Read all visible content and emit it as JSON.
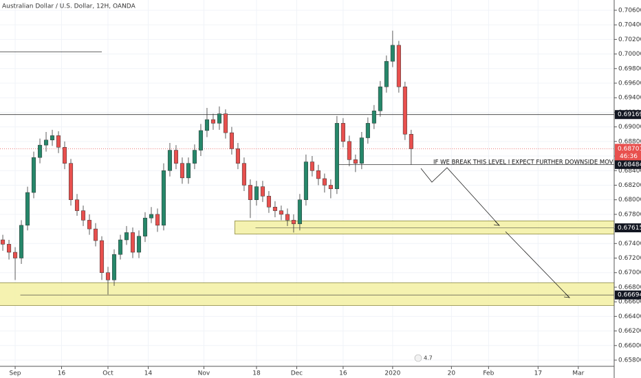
{
  "chart_data": {
    "type": "candlestick",
    "title": "Australian Dollar / U.S. Dollar, 12H, OANDA",
    "x": [
      -4,
      -2,
      0,
      2,
      4,
      6,
      8,
      10,
      12,
      14,
      16,
      18,
      20,
      22,
      24,
      26,
      28,
      30,
      32,
      34,
      36,
      38,
      40,
      42,
      44,
      46,
      48,
      50,
      52,
      54,
      56,
      58,
      60,
      62,
      64,
      66,
      68,
      70,
      72,
      74,
      76,
      78,
      80,
      82,
      84,
      86,
      88,
      90,
      92,
      94,
      96,
      98,
      100,
      102,
      104,
      106,
      108,
      110,
      112,
      114,
      116,
      118,
      120,
      122,
      124,
      126,
      128
    ],
    "open": [
      0.6745,
      0.6739,
      0.6728,
      0.672,
      0.6765,
      0.681,
      0.6858,
      0.6875,
      0.6882,
      0.6888,
      0.6872,
      0.685,
      0.68,
      0.6785,
      0.6772,
      0.676,
      0.6744,
      0.67,
      0.669,
      0.6725,
      0.6745,
      0.6755,
      0.6728,
      0.675,
      0.6775,
      0.678,
      0.6765,
      0.684,
      0.6868,
      0.685,
      0.683,
      0.685,
      0.6868,
      0.6895,
      0.691,
      0.6905,
      0.6918,
      0.6892,
      0.687,
      0.685,
      0.682,
      0.68,
      0.6818,
      0.6805,
      0.679,
      0.6785,
      0.678,
      0.6772,
      0.6767,
      0.68,
      0.6852,
      0.684,
      0.6829,
      0.682,
      0.6815,
      0.6905,
      0.688,
      0.6855,
      0.685,
      0.6885,
      0.6905,
      0.6922,
      0.6955,
      0.699,
      0.7012,
      0.6955,
      0.689
    ],
    "high": [
      0.6752,
      0.6745,
      0.6735,
      0.6772,
      0.6818,
      0.6866,
      0.6884,
      0.6893,
      0.6896,
      0.6894,
      0.688,
      0.6856,
      0.6808,
      0.6792,
      0.678,
      0.6768,
      0.675,
      0.6708,
      0.6732,
      0.6752,
      0.6764,
      0.6762,
      0.6758,
      0.6783,
      0.679,
      0.6788,
      0.685,
      0.6878,
      0.6875,
      0.6858,
      0.6858,
      0.6876,
      0.6904,
      0.6926,
      0.6918,
      0.6928,
      0.6924,
      0.69,
      0.6878,
      0.6858,
      0.6828,
      0.6826,
      0.6826,
      0.6812,
      0.6798,
      0.6792,
      0.6788,
      0.678,
      0.6808,
      0.6862,
      0.686,
      0.6848,
      0.6836,
      0.6828,
      0.6915,
      0.6912,
      0.6888,
      0.6862,
      0.6893,
      0.6913,
      0.693,
      0.6963,
      0.6998,
      0.7032,
      0.7018,
      0.6962,
      0.6896
    ],
    "low": [
      0.673,
      0.6718,
      0.669,
      0.6712,
      0.6758,
      0.6802,
      0.685,
      0.6866,
      0.6874,
      0.6864,
      0.6842,
      0.6792,
      0.6778,
      0.6764,
      0.6752,
      0.6736,
      0.669,
      0.667,
      0.6682,
      0.6718,
      0.6738,
      0.672,
      0.672,
      0.6742,
      0.6768,
      0.6756,
      0.6758,
      0.6832,
      0.6842,
      0.6822,
      0.6822,
      0.6842,
      0.686,
      0.6886,
      0.6896,
      0.6896,
      0.6884,
      0.6862,
      0.6842,
      0.6812,
      0.6775,
      0.6792,
      0.6797,
      0.6782,
      0.6776,
      0.6772,
      0.6764,
      0.6755,
      0.6758,
      0.6792,
      0.6832,
      0.682,
      0.681,
      0.6802,
      0.6808,
      0.6872,
      0.6846,
      0.6838,
      0.6842,
      0.6877,
      0.6897,
      0.6914,
      0.6947,
      0.6982,
      0.6947,
      0.6882,
      0.6848
    ],
    "close": [
      0.6739,
      0.6728,
      0.672,
      0.6765,
      0.681,
      0.6858,
      0.6875,
      0.6882,
      0.6888,
      0.6872,
      0.685,
      0.68,
      0.6785,
      0.6772,
      0.676,
      0.6744,
      0.67,
      0.669,
      0.6725,
      0.6745,
      0.6755,
      0.6728,
      0.675,
      0.6775,
      0.678,
      0.6765,
      0.684,
      0.6868,
      0.685,
      0.683,
      0.685,
      0.6868,
      0.6895,
      0.691,
      0.6905,
      0.6918,
      0.6892,
      0.687,
      0.685,
      0.682,
      0.68,
      0.6818,
      0.6805,
      0.679,
      0.6785,
      0.678,
      0.6772,
      0.6767,
      0.68,
      0.6852,
      0.684,
      0.6829,
      0.682,
      0.6815,
      0.6905,
      0.688,
      0.6855,
      0.685,
      0.6885,
      0.6905,
      0.6922,
      0.6955,
      0.699,
      0.7012,
      0.6955,
      0.689,
      0.687
    ],
    "up_color": "#26876a",
    "down_color": "#e8504e",
    "xlim": [
      -4.9,
      193.6
    ],
    "ylim": [
      0.65715,
      0.70741
    ],
    "xticks": [
      {
        "value": 0,
        "label": "Sep"
      },
      {
        "value": 15,
        "label": "16"
      },
      {
        "value": 30,
        "label": "Oct"
      },
      {
        "value": 43,
        "label": "14"
      },
      {
        "value": 61,
        "label": "Nov"
      },
      {
        "value": 78,
        "label": "18"
      },
      {
        "value": 91,
        "label": "Dec"
      },
      {
        "value": 106,
        "label": "16"
      },
      {
        "value": 122,
        "label": "2020"
      },
      {
        "value": 141,
        "label": "20"
      },
      {
        "value": 153,
        "label": "Feb"
      },
      {
        "value": 169,
        "label": "17"
      },
      {
        "value": 182,
        "label": "Mar"
      }
    ],
    "yticks": [
      {
        "value": 0.658,
        "label": "0.65800"
      },
      {
        "value": 0.66,
        "label": "0.66000"
      },
      {
        "value": 0.662,
        "label": "0.66200"
      },
      {
        "value": 0.664,
        "label": "0.66400"
      },
      {
        "value": 0.666,
        "label": "0.66600"
      },
      {
        "value": 0.668,
        "label": "0.66800"
      },
      {
        "value": 0.67,
        "label": "0.67000"
      },
      {
        "value": 0.672,
        "label": "0.67200"
      },
      {
        "value": 0.674,
        "label": "0.67400"
      },
      {
        "value": 0.676,
        "label": "0.67600"
      },
      {
        "value": 0.678,
        "label": "0.67800"
      },
      {
        "value": 0.68,
        "label": "0.68000"
      },
      {
        "value": 0.682,
        "label": "0.68200"
      },
      {
        "value": 0.684,
        "label": "0.68400"
      },
      {
        "value": 0.686,
        "label": "0.68600"
      },
      {
        "value": 0.688,
        "label": "0.68800"
      },
      {
        "value": 0.69,
        "label": "0.69000"
      },
      {
        "value": 0.692,
        "label": "0.69200"
      },
      {
        "value": 0.694,
        "label": "0.69400"
      },
      {
        "value": 0.696,
        "label": "0.69600"
      },
      {
        "value": 0.698,
        "label": "0.69800"
      },
      {
        "value": 0.7,
        "label": "0.70000"
      },
      {
        "value": 0.702,
        "label": "0.70200"
      },
      {
        "value": 0.704,
        "label": "0.70400"
      },
      {
        "value": 0.706,
        "label": "0.70600"
      }
    ],
    "last_price": 0.68701,
    "countdown": "46:36",
    "lines": [
      {
        "price": 0.7003,
        "start": -5,
        "end": 28
      }
    ],
    "levels": [
      {
        "price": 0.69169,
        "start": -5
      },
      {
        "price": 0.68484,
        "start": 104
      }
    ],
    "zones": [
      {
        "top": 0.6771,
        "bottom": 0.6753,
        "start": 71,
        "price": 0.67615
      },
      {
        "top": 0.6686,
        "bottom": 0.6655,
        "start": -5,
        "price": 0.66694
      }
    ],
    "annotation": "IF WE BREAK THIS LEVEL I EXPECT FURTHER DOWNSIDE MOVEMENT",
    "badge": "4.7"
  }
}
